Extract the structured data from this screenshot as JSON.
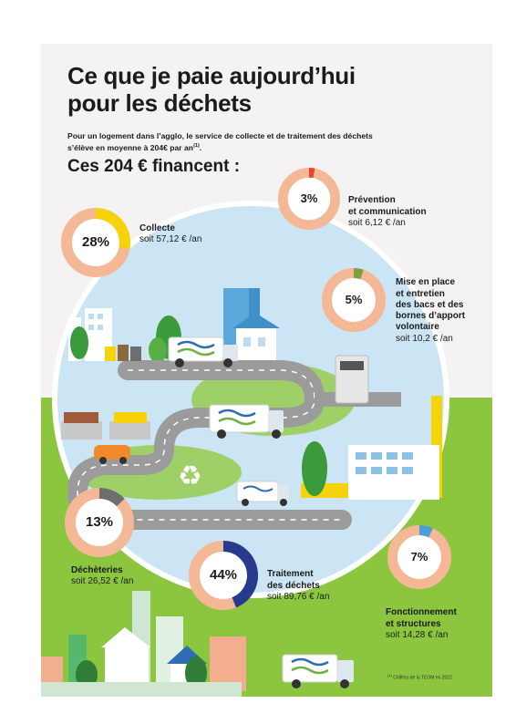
{
  "title_line1": "Ce que je paie aujourd’hui",
  "title_line2": "pour les déchets",
  "intro_text": "Pour un logement dans l’agglo, le service de collecte et de traitement des déchets s’élève en moyenne à 204€ par an",
  "intro_note_ref": "(1)",
  "finance_heading": "Ces 204 € financent :",
  "colors": {
    "ring": "#f4b897",
    "collecte": "#f5d20a",
    "prevention": "#e8452c",
    "mise": "#7e9f3f",
    "decheteries": "#6e6e6e",
    "traitement": "#283a8e",
    "fonctionnement": "#4b9fd4"
  },
  "segments": [
    {
      "id": "collecte",
      "label": "Collecte",
      "amount": "soit 57,12 € /an",
      "percent_label": "28%",
      "fraction": 0.28
    },
    {
      "id": "prevention",
      "label": "Prévention\net communication",
      "amount": "soit 6,12 € /an",
      "percent_label": "3%",
      "fraction": 0.03
    },
    {
      "id": "mise",
      "label": "Mise en place\net entretien\ndes bacs et des\nbornes d’apport\nvolontaire",
      "amount": "soit 10,2 € /an",
      "percent_label": "5%",
      "fraction": 0.05
    },
    {
      "id": "decheteries",
      "label": "Déchèteries",
      "amount": "soit 26,52 € /an",
      "percent_label": "13%",
      "fraction": 0.13
    },
    {
      "id": "traitement",
      "label": "Traitement\ndes déchets",
      "amount": "soit 89,76 € /an",
      "percent_label": "44%",
      "fraction": 0.44
    },
    {
      "id": "fonctionnement",
      "label": "Fonctionnement\net structures",
      "amount": "soit 14,28 € /an",
      "percent_label": "7%",
      "fraction": 0.07
    }
  ],
  "footnote_ref": "(1)",
  "footnote_text": " Chiffres de la TEOM en 2022"
}
